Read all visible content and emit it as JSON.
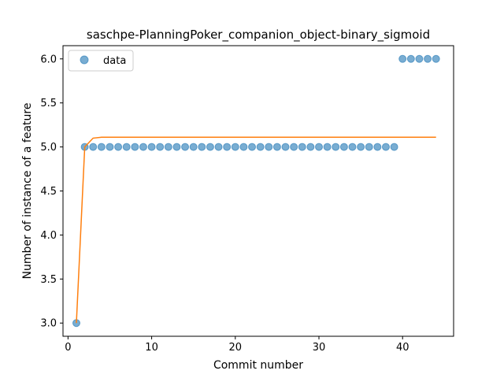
{
  "chart_data": {
    "type": "scatter",
    "title": "saschpe-PlanningPoker_companion_object-binary_sigmoid",
    "xlabel": "Commit number",
    "ylabel": "Number of instance of a feature",
    "xlim": [
      -0.6,
      46.1
    ],
    "ylim": [
      2.85,
      6.15
    ],
    "xticks": [
      0,
      10,
      20,
      30,
      40
    ],
    "yticks": [
      3.0,
      3.5,
      4.0,
      4.5,
      5.0,
      5.5,
      6.0
    ],
    "xtick_labels": [
      "0",
      "10",
      "20",
      "30",
      "40"
    ],
    "ytick_labels": [
      "3.0",
      "3.5",
      "4.0",
      "4.5",
      "5.0",
      "5.5",
      "6.0"
    ],
    "legend": {
      "position": "top-left",
      "entries": [
        "data"
      ]
    },
    "grid": false,
    "series": [
      {
        "name": "data",
        "kind": "scatter",
        "color": "#1f77b4",
        "x": [
          1,
          2,
          3,
          4,
          5,
          6,
          7,
          8,
          9,
          10,
          11,
          12,
          13,
          14,
          15,
          16,
          17,
          18,
          19,
          20,
          21,
          22,
          23,
          24,
          25,
          26,
          27,
          28,
          29,
          30,
          31,
          32,
          33,
          34,
          35,
          36,
          37,
          38,
          39,
          40,
          41,
          42,
          43,
          44
        ],
        "y": [
          3,
          5,
          5,
          5,
          5,
          5,
          5,
          5,
          5,
          5,
          5,
          5,
          5,
          5,
          5,
          5,
          5,
          5,
          5,
          5,
          5,
          5,
          5,
          5,
          5,
          5,
          5,
          5,
          5,
          5,
          5,
          5,
          5,
          5,
          5,
          5,
          5,
          5,
          5,
          6,
          6,
          6,
          6,
          6
        ]
      },
      {
        "kind": "line",
        "color": "#ff7f0e",
        "x": [
          1,
          2,
          3,
          4,
          5,
          6,
          7,
          8,
          9,
          10,
          11,
          12,
          13,
          14,
          15,
          16,
          17,
          18,
          19,
          20,
          21,
          22,
          23,
          24,
          25,
          26,
          27,
          28,
          29,
          30,
          31,
          32,
          33,
          34,
          35,
          36,
          37,
          38,
          39,
          40,
          41,
          42,
          43,
          44
        ],
        "y": [
          3.0,
          5.0,
          5.1,
          5.11,
          5.11,
          5.11,
          5.11,
          5.11,
          5.11,
          5.11,
          5.11,
          5.11,
          5.11,
          5.11,
          5.11,
          5.11,
          5.11,
          5.11,
          5.11,
          5.11,
          5.11,
          5.11,
          5.11,
          5.11,
          5.11,
          5.11,
          5.11,
          5.11,
          5.11,
          5.11,
          5.11,
          5.11,
          5.11,
          5.11,
          5.11,
          5.11,
          5.11,
          5.11,
          5.11,
          5.11,
          5.11,
          5.11,
          5.11,
          5.11
        ]
      }
    ]
  }
}
